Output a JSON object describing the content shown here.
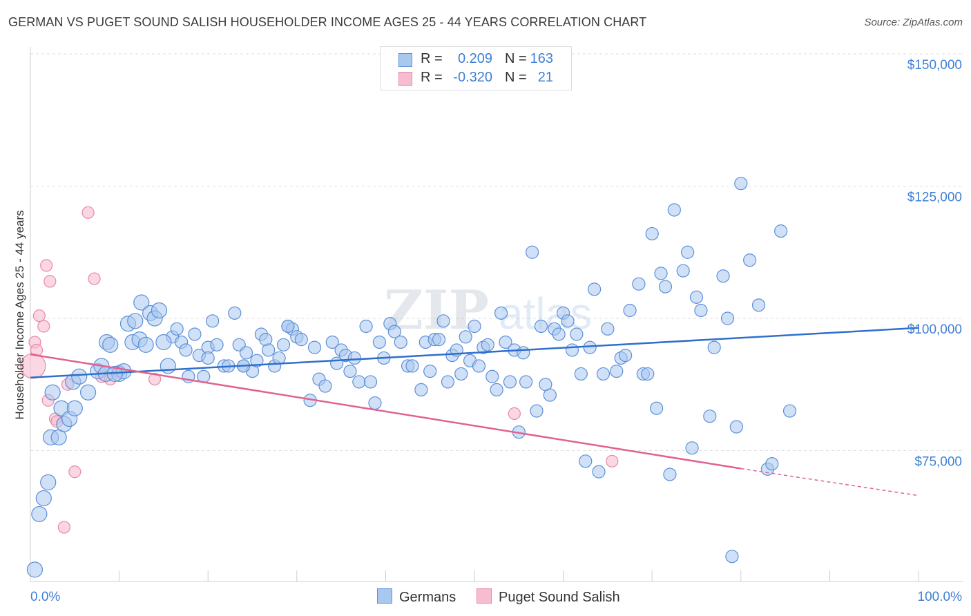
{
  "title": "GERMAN VS PUGET SOUND SALISH HOUSEHOLDER INCOME AGES 25 - 44 YEARS CORRELATION CHART",
  "source": "Source: ZipAtlas.com",
  "watermark": {
    "zip": "ZIP",
    "atlas": "atlas"
  },
  "legend": {
    "rows": [
      {
        "r_label": "R =",
        "r_value": "0.209",
        "n_label": "N =",
        "n_value": "163"
      },
      {
        "r_label": "R =",
        "r_value": "-0.320",
        "n_label": "N =",
        "n_value": "21"
      }
    ]
  },
  "bottom_legend": [
    "Germans",
    "Puget Sound Salish"
  ],
  "colors": {
    "german_fill": "#a9c8f0",
    "german_stroke": "#5b8fd8",
    "german_line": "#2f6fcc",
    "salish_fill": "#f7bcd0",
    "salish_stroke": "#e888a8",
    "salish_line": "#e0628f",
    "tick_text": "#3f7fd6",
    "grid": "#dddddd"
  },
  "chart_data": {
    "type": "scatter",
    "title": "GERMAN VS PUGET SOUND SALISH HOUSEHOLDER INCOME AGES 25 - 44 YEARS CORRELATION CHART",
    "xlabel": "",
    "ylabel": "Householder Income Ages 25 - 44 years",
    "xlim": [
      0,
      100
    ],
    "ylim": [
      52000,
      154000
    ],
    "x_tick_labels": [
      "0.0%",
      "100.0%"
    ],
    "y_ticks": [
      75000,
      100000,
      125000,
      150000
    ],
    "y_tick_labels": [
      "$75,000",
      "$100,000",
      "$125,000",
      "$150,000"
    ],
    "grid": true,
    "legend_position": "top-center",
    "series": [
      {
        "name": "Germans",
        "r": 0.209,
        "n": 163,
        "trend": {
          "x": [
            0,
            100
          ],
          "y": [
            88800,
            98200
          ]
        },
        "points": [
          [
            0.5,
            52.5
          ],
          [
            1,
            63
          ],
          [
            1.5,
            66
          ],
          [
            2,
            69
          ],
          [
            2.3,
            77.5
          ],
          [
            3.2,
            77.5
          ],
          [
            3.5,
            83
          ],
          [
            3.8,
            80
          ],
          [
            4.4,
            81
          ],
          [
            4.8,
            88
          ],
          [
            5,
            83
          ],
          [
            6.5,
            86
          ],
          [
            7.6,
            90
          ],
          [
            8,
            91
          ],
          [
            8.5,
            89.5
          ],
          [
            8.6,
            95.5
          ],
          [
            9,
            95
          ],
          [
            10,
            89.5
          ],
          [
            10.5,
            90
          ],
          [
            11,
            99
          ],
          [
            11.5,
            95.5
          ],
          [
            11.8,
            99.5
          ],
          [
            12.3,
            96
          ],
          [
            12.5,
            103
          ],
          [
            13,
            95
          ],
          [
            13.5,
            101
          ],
          [
            14,
            100
          ],
          [
            14.5,
            101.5
          ],
          [
            15.5,
            91
          ],
          [
            16,
            96.5
          ],
          [
            16.5,
            98
          ],
          [
            17,
            95.5
          ],
          [
            17.5,
            94
          ],
          [
            17.8,
            89
          ],
          [
            18.5,
            97
          ],
          [
            19,
            93
          ],
          [
            19.5,
            89
          ],
          [
            20,
            94.5
          ],
          [
            20.5,
            99.5
          ],
          [
            21,
            95
          ],
          [
            21.8,
            91
          ],
          [
            22.3,
            91
          ],
          [
            23,
            101
          ],
          [
            23.5,
            95
          ],
          [
            24,
            91
          ],
          [
            24.3,
            93.5
          ],
          [
            25,
            90
          ],
          [
            25.5,
            92
          ],
          [
            26,
            97
          ],
          [
            26.5,
            96
          ],
          [
            26.8,
            94
          ],
          [
            27.5,
            91
          ],
          [
            28,
            92.5
          ],
          [
            28.5,
            95
          ],
          [
            29,
            98.5
          ],
          [
            29.5,
            98
          ],
          [
            30,
            96.5
          ],
          [
            30.5,
            96
          ],
          [
            31.5,
            84.5
          ],
          [
            32,
            94.5
          ],
          [
            32.5,
            88.5
          ],
          [
            33.2,
            87.2
          ],
          [
            34,
            95.5
          ],
          [
            34.5,
            91.5
          ],
          [
            35,
            94
          ],
          [
            35.5,
            93
          ],
          [
            36,
            90
          ],
          [
            36.5,
            92.5
          ],
          [
            37,
            88
          ],
          [
            37.8,
            98.5
          ],
          [
            38.3,
            88
          ],
          [
            38.8,
            84
          ],
          [
            39.3,
            95.5
          ],
          [
            39.8,
            92.5
          ],
          [
            40.5,
            99
          ],
          [
            41,
            97.5
          ],
          [
            41.7,
            95.5
          ],
          [
            42.5,
            91
          ],
          [
            43,
            91
          ],
          [
            44,
            86.5
          ],
          [
            44.5,
            95.5
          ],
          [
            45,
            90
          ],
          [
            45.5,
            96
          ],
          [
            46,
            96
          ],
          [
            46.5,
            99.5
          ],
          [
            47,
            88
          ],
          [
            47.5,
            93
          ],
          [
            48,
            94
          ],
          [
            48.5,
            89.5
          ],
          [
            49,
            96.5
          ],
          [
            49.5,
            92
          ],
          [
            50,
            98.5
          ],
          [
            50.5,
            91
          ],
          [
            51,
            94.5
          ],
          [
            51.5,
            95
          ],
          [
            52,
            89
          ],
          [
            52.5,
            86.5
          ],
          [
            53,
            101
          ],
          [
            53.5,
            95.5
          ],
          [
            54,
            88
          ],
          [
            54.5,
            94
          ],
          [
            55,
            78.5
          ],
          [
            55.5,
            93.5
          ],
          [
            55.8,
            88
          ],
          [
            56.5,
            112.5
          ],
          [
            57,
            82.5
          ],
          [
            57.5,
            98.5
          ],
          [
            58,
            87.5
          ],
          [
            58.5,
            85.5
          ],
          [
            59,
            98
          ],
          [
            59.5,
            97
          ],
          [
            60,
            101
          ],
          [
            60.5,
            99.5
          ],
          [
            61,
            94
          ],
          [
            61.5,
            97
          ],
          [
            62,
            89.5
          ],
          [
            62.5,
            73
          ],
          [
            63,
            94.5
          ],
          [
            63.5,
            105.5
          ],
          [
            64,
            71
          ],
          [
            64.5,
            89.5
          ],
          [
            65,
            98
          ],
          [
            66,
            90
          ],
          [
            66.5,
            92.5
          ],
          [
            67,
            93
          ],
          [
            67.5,
            101.5
          ],
          [
            68.5,
            106.5
          ],
          [
            69,
            89.5
          ],
          [
            69.5,
            89.5
          ],
          [
            70,
            116
          ],
          [
            70.5,
            83
          ],
          [
            71,
            108.5
          ],
          [
            71.5,
            106
          ],
          [
            72,
            70.5
          ],
          [
            72.5,
            120.5
          ],
          [
            73.5,
            109
          ],
          [
            74,
            112.5
          ],
          [
            74.5,
            75.5
          ],
          [
            75,
            104
          ],
          [
            75.5,
            101.5
          ],
          [
            76.5,
            81.5
          ],
          [
            77,
            94.5
          ],
          [
            78,
            108
          ],
          [
            78.5,
            100
          ],
          [
            79,
            55
          ],
          [
            79.5,
            79.5
          ],
          [
            80,
            125.5
          ],
          [
            81,
            111
          ],
          [
            82,
            102.5
          ],
          [
            83,
            71.5
          ],
          [
            83.5,
            72.5
          ],
          [
            84.5,
            116.5
          ],
          [
            85.5,
            82.5
          ],
          [
            2.5,
            86
          ],
          [
            5.5,
            89
          ],
          [
            9.5,
            89.5
          ],
          [
            15,
            95.5
          ],
          [
            20,
            92.5
          ],
          [
            24,
            91
          ],
          [
            29,
            98.5
          ]
        ]
      },
      {
        "name": "Puget Sound Salish",
        "r": -0.32,
        "n": 21,
        "trend": {
          "x": [
            0,
            80
          ],
          "y": [
            93200,
            71600
          ]
        },
        "trend_dashed": {
          "x": [
            80,
            100
          ],
          "y": [
            71600,
            66500
          ]
        },
        "points": [
          [
            0.3,
            91
          ],
          [
            0.5,
            95.5
          ],
          [
            0.7,
            94
          ],
          [
            1,
            100.5
          ],
          [
            1.5,
            98.5
          ],
          [
            1.8,
            110
          ],
          [
            2,
            84.5
          ],
          [
            2.2,
            107
          ],
          [
            2.8,
            81
          ],
          [
            3,
            80.5
          ],
          [
            3.8,
            60.5
          ],
          [
            4.2,
            87.5
          ],
          [
            5,
            71
          ],
          [
            6.5,
            120
          ],
          [
            7.2,
            107.5
          ],
          [
            8,
            89
          ],
          [
            9,
            88.5
          ],
          [
            10,
            90
          ],
          [
            14,
            88.5
          ],
          [
            54.5,
            82
          ],
          [
            65.5,
            73
          ]
        ]
      }
    ]
  }
}
